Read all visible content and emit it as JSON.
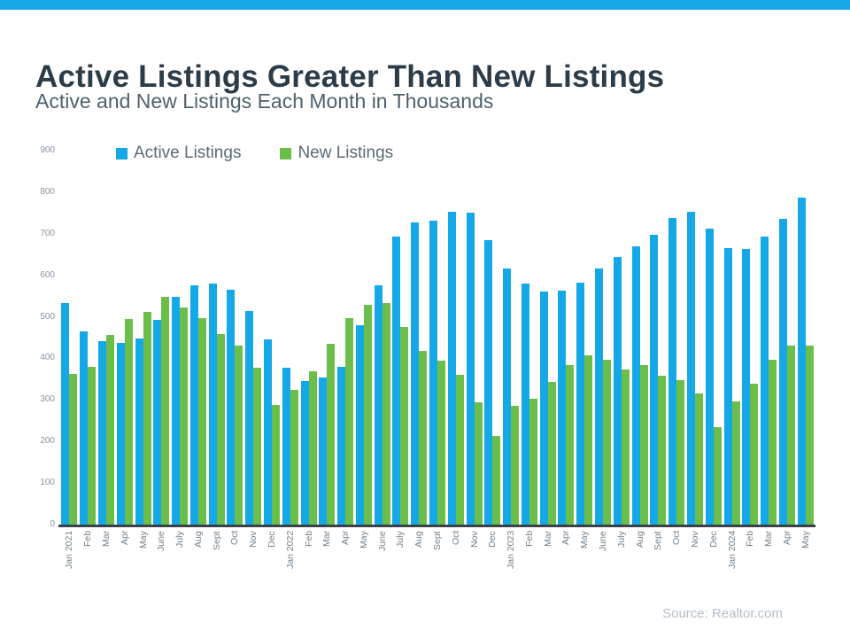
{
  "header": {
    "title": "Active Listings Greater Than New Listings",
    "subtitle": "Active and New Listings Each Month in Thousands"
  },
  "source": "Source: Realtor.com",
  "colors": {
    "accent_strip": "#14A8E6",
    "active_bar": "#14A8E6",
    "new_bar": "#6CBE4B",
    "title_text": "#2C3C48",
    "subtitle_text": "#4E616D",
    "legend_text": "#5B6B77",
    "axis_line": "#3A4148",
    "ytick_text": "#8593A0",
    "xtick_text": "#72818D",
    "source_text": "#B4BEC8"
  },
  "chart_data": {
    "type": "bar",
    "title": "Active Listings Greater Than New Listings",
    "subtitle": "Active and New Listings Each Month in Thousands",
    "unit": "thousands",
    "grid": false,
    "legend_position": "top-left",
    "ylim": [
      0,
      900
    ],
    "yticks": [
      0,
      100,
      200,
      300,
      400,
      500,
      600,
      700,
      800,
      900
    ],
    "categories": [
      "Jan 2021",
      "Feb",
      "Mar",
      "Apr",
      "May",
      "June",
      "July",
      "Aug",
      "Sept",
      "Oct",
      "Nov",
      "Dec",
      "Jan 2022",
      "Feb",
      "Mar",
      "Apr",
      "May",
      "June",
      "July",
      "Aug",
      "Sept",
      "Oct",
      "Nov",
      "Dec",
      "Jan 2023",
      "Feb",
      "Mar",
      "Apr",
      "May",
      "June",
      "July",
      "Aug",
      "Sept",
      "Oct",
      "Nov",
      "Dec",
      "Jan 2024",
      "Feb",
      "Mar",
      "Apr",
      "May"
    ],
    "series": [
      {
        "name": "Active Listings",
        "color": "#14A8E6",
        "values": [
          533,
          465,
          442,
          438,
          448,
          493,
          549,
          576,
          580,
          566,
          514,
          445,
          377,
          345,
          355,
          380,
          479,
          575,
          693,
          727,
          731,
          754,
          750,
          684,
          617,
          580,
          562,
          563,
          583,
          616,
          645,
          669,
          698,
          737,
          754,
          713,
          665,
          663,
          694,
          735,
          788
        ]
      },
      {
        "name": "New Listings",
        "color": "#6CBE4B",
        "values": [
          363,
          380,
          456,
          494,
          513,
          548,
          522,
          496,
          459,
          431,
          377,
          287,
          325,
          368,
          435,
          496,
          528,
          534,
          475,
          418,
          395,
          360,
          294,
          214,
          285,
          303,
          344,
          384,
          407,
          397,
          373,
          385,
          359,
          347,
          316,
          235,
          296,
          339,
          396,
          431,
          431
        ]
      }
    ]
  }
}
